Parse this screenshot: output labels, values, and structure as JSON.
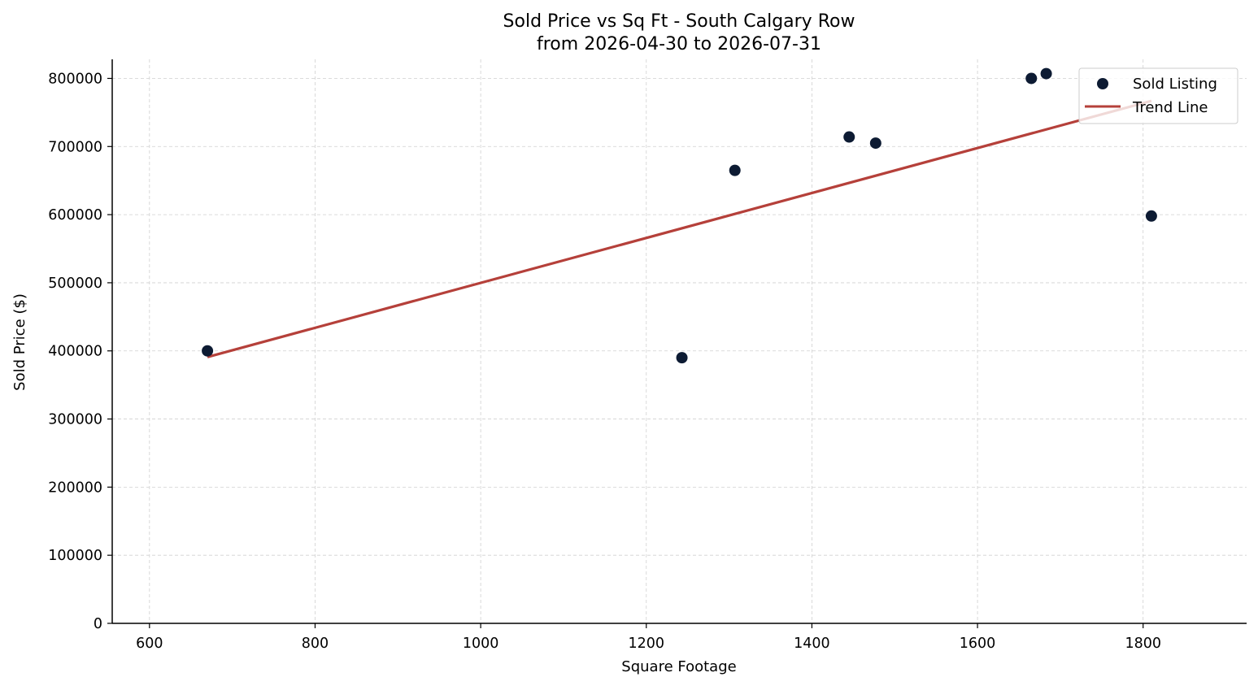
{
  "chart_data": {
    "type": "scatter",
    "title": "Sold Price vs Sq Ft - South Calgary Row",
    "subtitle": "from 2026-04-30 to 2026-07-31",
    "xlabel": "Square Footage",
    "ylabel": "Sold Price ($)",
    "xlim": [
      555,
      1925
    ],
    "ylim": [
      0,
      828000
    ],
    "x_ticks": [
      600,
      800,
      1000,
      1200,
      1400,
      1600,
      1800
    ],
    "y_ticks": [
      0,
      100000,
      200000,
      300000,
      400000,
      500000,
      600000,
      700000,
      800000
    ],
    "grid": true,
    "legend_position": "top-right",
    "series": [
      {
        "name": "Sold Listing",
        "type": "scatter",
        "color": "#0d1b33",
        "points": [
          {
            "x": 670,
            "y": 400000
          },
          {
            "x": 1243,
            "y": 390000
          },
          {
            "x": 1307,
            "y": 665000
          },
          {
            "x": 1445,
            "y": 714000
          },
          {
            "x": 1477,
            "y": 705000
          },
          {
            "x": 1665,
            "y": 800000
          },
          {
            "x": 1683,
            "y": 807000
          },
          {
            "x": 1810,
            "y": 598000
          }
        ]
      },
      {
        "name": "Trend Line",
        "type": "line",
        "color": "#b5403a",
        "points": [
          {
            "x": 670,
            "y": 391000
          },
          {
            "x": 1810,
            "y": 767000
          }
        ]
      }
    ]
  }
}
